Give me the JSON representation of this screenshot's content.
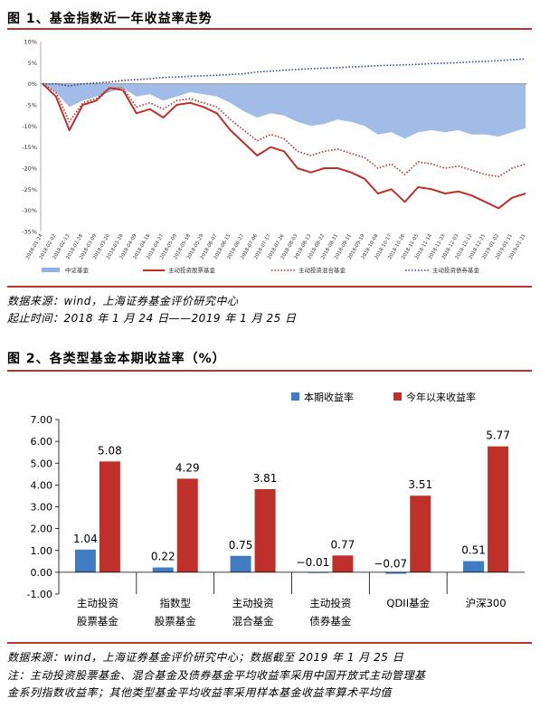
{
  "fig1": {
    "title": "图 1、基金指数近一年收益率走势",
    "source": "数据来源：wind，上海证券基金评价研究中心",
    "period": "起止时间：2018 年 1 月 24 日——2019 年 1 月 25 日"
  },
  "fig2": {
    "title": "图 2、各类型基金本期收益率（%）",
    "source": "数据来源：wind，上海证券基金评价研究中心；数据截至 2019 年 1 月 25 日",
    "note_line1": "注：主动投资股票基金、混合基金及债券基金平均收益率采用中国开放式主动管理基",
    "note_line2": "金系列指数收益率；其他类型基金平均收益率采用样本基金收益率算术平均值"
  },
  "colors": {
    "rule": "#b8342f",
    "area": "#8fb0e3",
    "stock": "#c0302b",
    "mixed": "#c0302b",
    "bond": "#2f4a8c",
    "bar_period": "#3f7cc4",
    "bar_ytd": "#c0302b"
  },
  "chart_data": [
    {
      "type": "line",
      "y_ticks": [
        "10%",
        "5%",
        "0%",
        "-5%",
        "-10%",
        "-15%",
        "-20%",
        "-25%",
        "-30%",
        "-35%"
      ],
      "ylim": [
        -35,
        10
      ],
      "x_labels": [
        "2018-01-24",
        "2018-02-02",
        "2018-02-13",
        "2018-02-28",
        "2018-03-09",
        "2018-03-20",
        "2018-03-28",
        "2018-04-09",
        "2018-04-18",
        "2018-04-27",
        "2018-05-09",
        "2018-05-18",
        "2018-05-29",
        "2018-06-07",
        "2018-06-15",
        "2018-06-27",
        "2018-07-06",
        "2018-07-17",
        "2018-07-26",
        "2018-08-03",
        "2018-08-13",
        "2018-08-22",
        "2018-08-31",
        "2018-09-11",
        "2018-09-19",
        "2018-10-08",
        "2018-10-17",
        "2018-10-26",
        "2018-11-05",
        "2018-11-14",
        "2018-11-23",
        "2018-12-03",
        "2018-12-12",
        "2018-12-21",
        "2019-01-02",
        "2019-01-11",
        "2019-01-21"
      ],
      "series": [
        {
          "name": "中证基金",
          "style": "area",
          "values": [
            0,
            -2,
            -5.5,
            -4,
            -3,
            -2,
            -1,
            -3,
            -2.5,
            -4,
            -3,
            -2,
            -2.5,
            -3,
            -4.5,
            -6.5,
            -8,
            -7,
            -7.5,
            -9,
            -10,
            -9.5,
            -8.5,
            -9,
            -10,
            -12,
            -11.5,
            -13,
            -11.5,
            -11,
            -11.5,
            -11,
            -12,
            -12,
            -12.5,
            -11.5,
            -10.5
          ]
        },
        {
          "name": "主动投资股票基金",
          "style": "solid",
          "values": [
            0,
            -3,
            -11,
            -5,
            -4,
            -1,
            -1.5,
            -7,
            -6,
            -8,
            -5,
            -4.5,
            -5.5,
            -7,
            -11,
            -14,
            -17,
            -15,
            -16,
            -20,
            -21,
            -20,
            -20,
            -21,
            -22.5,
            -26,
            -25,
            -28,
            -24.5,
            -25,
            -26,
            -25.5,
            -26.5,
            -28,
            -29.5,
            -27,
            -26
          ]
        },
        {
          "name": "主动投资混合基金",
          "style": "dotted",
          "values": [
            0,
            -2,
            -9,
            -4.5,
            -3.5,
            -1,
            -1,
            -5.5,
            -4.5,
            -6,
            -4,
            -3.5,
            -4.5,
            -5.5,
            -8.5,
            -11,
            -13.5,
            -12,
            -13,
            -16,
            -17,
            -16,
            -15.5,
            -16.5,
            -17.5,
            -20,
            -19,
            -21.5,
            -18.5,
            -19,
            -20,
            -19.5,
            -20.5,
            -21.5,
            -22,
            -20,
            -19
          ]
        },
        {
          "name": "主动投资债券基金",
          "style": "dotted",
          "values": [
            0,
            0,
            -0.5,
            0,
            0.2,
            0.4,
            0.8,
            1,
            1.2,
            1.5,
            1.6,
            1.8,
            1.9,
            2,
            2.2,
            2.4,
            2.8,
            3,
            3.2,
            3.4,
            3.6,
            3.7,
            3.8,
            4,
            4.1,
            4.3,
            4.4,
            4.5,
            4.6,
            4.8,
            4.9,
            5,
            5.2,
            5.3,
            5.5,
            5.7,
            5.9
          ]
        }
      ]
    },
    {
      "type": "bar",
      "categories": [
        {
          "line1": "主动投资",
          "line2": "股票基金"
        },
        {
          "line1": "指数型",
          "line2": "股票基金"
        },
        {
          "line1": "主动投资",
          "line2": "混合基金"
        },
        {
          "line1": "主动投资",
          "line2": "债券基金"
        },
        {
          "line1": "QDII基金",
          "line2": ""
        },
        {
          "line1": "沪深300",
          "line2": ""
        }
      ],
      "y_ticks": [
        "7.00",
        "6.00",
        "5.00",
        "4.00",
        "3.00",
        "2.00",
        "1.00",
        "0.00",
        "-1.00"
      ],
      "ylim": [
        -1,
        7
      ],
      "series": [
        {
          "name": "本期收益率",
          "values": [
            1.04,
            0.22,
            0.75,
            -0.01,
            -0.07,
            0.51
          ],
          "labels": [
            "1.04",
            "0.22",
            "0.75",
            "−0.01",
            "−0.07",
            "0.51"
          ]
        },
        {
          "name": "今年以来收益率",
          "values": [
            5.08,
            4.29,
            3.81,
            0.77,
            3.51,
            5.77
          ],
          "labels": [
            "5.08",
            "4.29",
            "3.81",
            "0.77",
            "3.51",
            "5.77"
          ]
        }
      ]
    }
  ]
}
